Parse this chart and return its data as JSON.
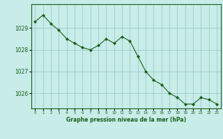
{
  "hours": [
    0,
    1,
    2,
    3,
    4,
    5,
    6,
    7,
    8,
    9,
    10,
    11,
    12,
    13,
    14,
    15,
    16,
    17,
    18,
    19,
    20,
    21,
    22,
    23
  ],
  "pressure": [
    1029.3,
    1029.6,
    1029.2,
    1028.9,
    1028.5,
    1028.3,
    1028.1,
    1028.0,
    1028.2,
    1028.5,
    1028.3,
    1028.6,
    1028.4,
    1027.7,
    1027.0,
    1026.6,
    1026.4,
    1026.0,
    1025.8,
    1025.5,
    1025.5,
    1025.8,
    1025.7,
    1025.5
  ],
  "ylim": [
    1025.3,
    1030.1
  ],
  "yticks": [
    1026,
    1027,
    1028,
    1029
  ],
  "xticks": [
    0,
    1,
    2,
    3,
    4,
    5,
    6,
    7,
    8,
    9,
    10,
    11,
    12,
    13,
    14,
    15,
    16,
    17,
    18,
    19,
    20,
    21,
    22,
    23
  ],
  "line_color": "#1a5c1a",
  "marker_color": "#1a5c1a",
  "bg_color": "#c8ece8",
  "grid_color": "#a0d0cc",
  "xlabel": "Graphe pression niveau de la mer (hPa)",
  "xlabel_color": "#1a5c1a",
  "tick_color": "#1a5c1a",
  "axis_color": "#1a5c1a",
  "figsize": [
    3.2,
    2.0
  ],
  "dpi": 100
}
